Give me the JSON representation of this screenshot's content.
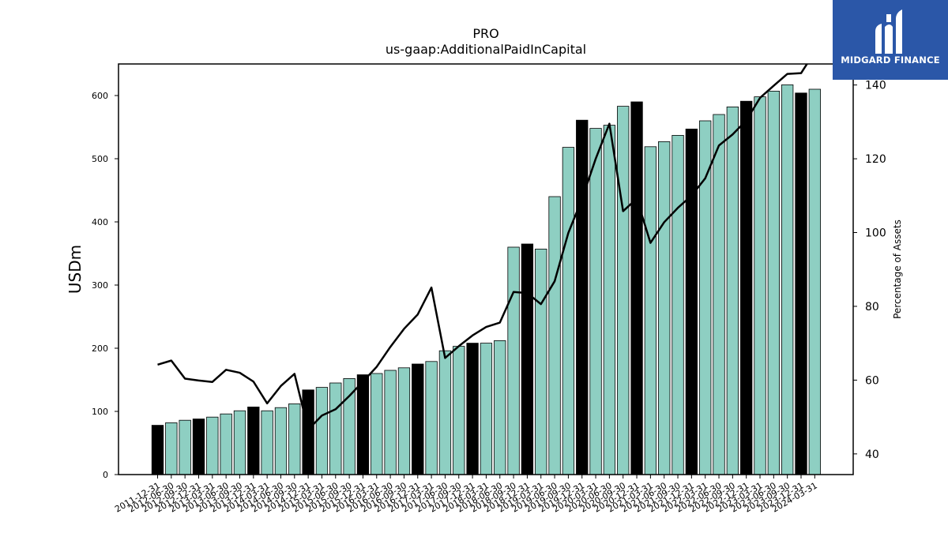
{
  "chart_data": {
    "type": "bar+line",
    "title": "PRO",
    "subtitle": "us-gaap:AdditionalPaidInCapital",
    "ylabel": "USDm",
    "y2label": "Percentage of Assets",
    "ylim": [
      0,
      650
    ],
    "y2lim": [
      34.4,
      145.7
    ],
    "yticks": [
      "0",
      "100",
      "200",
      "300",
      "400",
      "500",
      "600"
    ],
    "y2ticks": [
      "40",
      "60",
      "80",
      "100",
      "120",
      "140"
    ],
    "categories": [
      "2011-12-31",
      "2012-06-30",
      "2012-09-30",
      "2012-12-31",
      "2013-03-31",
      "2013-06-30",
      "2013-09-30",
      "2013-12-31",
      "2014-03-31",
      "2014-06-30",
      "2014-09-30",
      "2014-12-31",
      "2015-03-31",
      "2015-06-30",
      "2015-09-30",
      "2015-12-31",
      "2016-03-31",
      "2016-06-30",
      "2016-09-30",
      "2016-12-31",
      "2017-03-31",
      "2017-06-30",
      "2017-09-30",
      "2017-12-31",
      "2018-03-31",
      "2018-06-30",
      "2018-09-30",
      "2018-12-31",
      "2019-03-31",
      "2019-06-30",
      "2019-09-30",
      "2019-12-31",
      "2020-03-31",
      "2020-06-30",
      "2020-09-30",
      "2020-12-31",
      "2021-03-31",
      "2021-06-30",
      "2021-09-30",
      "2021-12-31",
      "2022-03-31",
      "2022-06-30",
      "2022-09-30",
      "2022-12-31",
      "2023-03-31",
      "2023-06-30",
      "2023-09-30",
      "2023-12-31",
      "2024-03-31"
    ],
    "values": [
      78,
      82,
      86,
      88,
      91,
      96,
      101,
      107,
      101,
      106,
      112,
      134,
      138,
      145,
      152,
      158,
      160,
      165,
      169,
      175,
      179,
      196,
      203,
      208,
      208,
      212,
      360,
      365,
      357,
      440,
      518,
      561,
      548,
      553,
      583,
      590,
      519,
      527,
      537,
      547,
      560,
      570,
      582,
      591,
      598,
      607,
      617,
      604,
      610
    ],
    "highlight": [
      true,
      false,
      false,
      true,
      false,
      false,
      false,
      true,
      false,
      false,
      false,
      true,
      false,
      false,
      false,
      true,
      false,
      false,
      false,
      true,
      false,
      false,
      false,
      true,
      false,
      false,
      false,
      true,
      false,
      false,
      false,
      true,
      false,
      false,
      false,
      true,
      false,
      false,
      false,
      true,
      false,
      false,
      false,
      true,
      false,
      false,
      false,
      true,
      false
    ],
    "line_series": {
      "values": [
        64.2,
        65.3,
        60.4,
        59.9,
        59.5,
        62.8,
        62.0,
        59.6,
        53.7,
        58.4,
        61.7,
        46.6,
        50.4,
        52.1,
        55.7,
        59.6,
        63.6,
        69.0,
        73.9,
        77.8,
        85.1,
        66.0,
        69.2,
        72.1,
        74.4,
        75.6,
        83.9,
        83.6,
        80.6,
        86.8,
        99.9,
        109.1,
        120.0,
        129.5,
        105.8,
        109.2,
        97.2,
        102.8,
        106.7,
        110.0,
        114.7,
        123.6,
        126.6,
        130.4,
        136.5,
        139.8,
        143.0,
        143.2,
        149.0
      ]
    },
    "colors": {
      "bar": "#8ecfc2",
      "bar_highlight": "#000000",
      "line": "#000000"
    },
    "grid": false
  },
  "logo": {
    "text": "MIDGARD FINANCE",
    "background": "#2b57a8"
  }
}
